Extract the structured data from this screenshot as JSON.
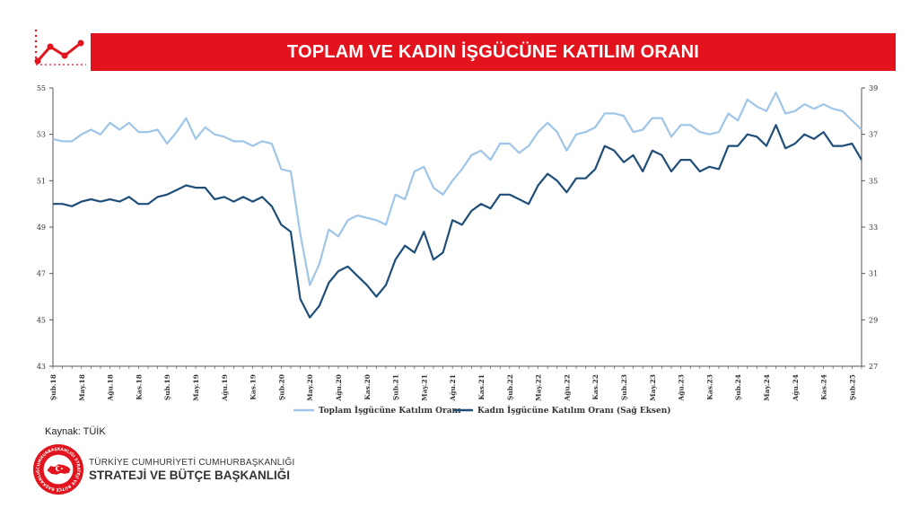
{
  "header": {
    "title": "TOPLAM VE KADIN İŞGÜCÜNE KATILIM ORANI"
  },
  "footer": {
    "source": "Kaynak: TÜİK",
    "org_line1": "TÜRKİYE CUMHURİYETİ CUMHURBAŞKANLIĞI",
    "org_line2": "STRATEJİ VE BÜTÇE BAŞKANLIĞI",
    "seal_text": "CUMHURBAŞKANLIĞI STRATEJİ VE BÜTÇE BAŞKANLIĞI"
  },
  "colors": {
    "accent": "#e2131c",
    "series_total": "#9fc5e8",
    "series_women": "#1f4e79"
  },
  "chart_data": {
    "type": "line",
    "title": "",
    "xlabel": "",
    "ylabel": "",
    "ylim_left": [
      43,
      55
    ],
    "ylim_right": [
      27,
      39
    ],
    "yticks_left": [
      "43",
      "45",
      "47",
      "49",
      "51",
      "53",
      "55"
    ],
    "yticks_right": [
      "27",
      "29",
      "31",
      "33",
      "35",
      "37",
      "39"
    ],
    "grid": false,
    "legend_position": "bottom",
    "x_tick_labels": [
      "Şub.18",
      "May.18",
      "Ağu.18",
      "Kas.18",
      "Şub.19",
      "May.19",
      "Ağu.19",
      "Kas.19",
      "Şub.20",
      "May.20",
      "Ağu.20",
      "Kas.20",
      "Şub.21",
      "May.21",
      "Ağu.21",
      "Kas.21",
      "Şub.22",
      "May.22",
      "Ağu.22",
      "Kas.22",
      "Şub.23",
      "May.23",
      "Ağu.23",
      "Kas.23",
      "Şub.24",
      "May.24",
      "Ağu.24",
      "Kas.24",
      "Şub.25"
    ],
    "x_tick_every": 3,
    "series": [
      {
        "name": "Toplam İşgücüne Katılım Oranı",
        "axis": "left",
        "values": [
          52.8,
          52.7,
          52.7,
          53.0,
          53.2,
          53.0,
          53.5,
          53.2,
          53.5,
          53.1,
          53.1,
          53.2,
          52.6,
          53.1,
          53.7,
          52.8,
          53.3,
          53.0,
          52.9,
          52.7,
          52.7,
          52.5,
          52.7,
          52.6,
          51.5,
          51.4,
          48.7,
          46.5,
          47.4,
          48.9,
          48.6,
          49.3,
          49.5,
          49.4,
          49.3,
          49.1,
          50.4,
          50.2,
          51.4,
          51.6,
          50.7,
          50.4,
          51.0,
          51.5,
          52.1,
          52.3,
          51.9,
          52.6,
          52.6,
          52.2,
          52.5,
          53.1,
          53.5,
          53.1,
          52.3,
          53.0,
          53.1,
          53.3,
          53.9,
          53.9,
          53.8,
          53.1,
          53.2,
          53.7,
          53.7,
          52.9,
          53.4,
          53.4,
          53.1,
          53.0,
          53.1,
          53.9,
          53.6,
          54.5,
          54.2,
          54.0,
          54.8,
          53.9,
          54.0,
          54.3,
          54.1,
          54.3,
          54.1,
          54.0,
          53.6,
          53.2
        ]
      },
      {
        "name": "Kadın İşgücüne Katılım Oranı (Sağ Eksen)",
        "axis": "right",
        "values": [
          34.0,
          34.0,
          33.9,
          34.1,
          34.2,
          34.1,
          34.2,
          34.1,
          34.3,
          34.0,
          34.0,
          34.3,
          34.4,
          34.6,
          34.8,
          34.7,
          34.7,
          34.2,
          34.3,
          34.1,
          34.3,
          34.1,
          34.3,
          33.9,
          33.1,
          32.8,
          29.9,
          29.1,
          29.6,
          30.6,
          31.1,
          31.3,
          30.9,
          30.5,
          30.0,
          30.5,
          31.6,
          32.2,
          31.9,
          32.8,
          31.6,
          31.9,
          33.3,
          33.1,
          33.7,
          34.0,
          33.8,
          34.4,
          34.4,
          34.2,
          34.0,
          34.8,
          35.3,
          35.0,
          34.5,
          35.1,
          35.1,
          35.5,
          36.5,
          36.3,
          35.8,
          36.1,
          35.4,
          36.3,
          36.1,
          35.4,
          35.9,
          35.9,
          35.4,
          35.6,
          35.5,
          36.5,
          36.5,
          37.0,
          36.9,
          36.5,
          37.4,
          36.4,
          36.6,
          37.0,
          36.8,
          37.1,
          36.5,
          36.5,
          36.6,
          35.9
        ]
      }
    ]
  }
}
